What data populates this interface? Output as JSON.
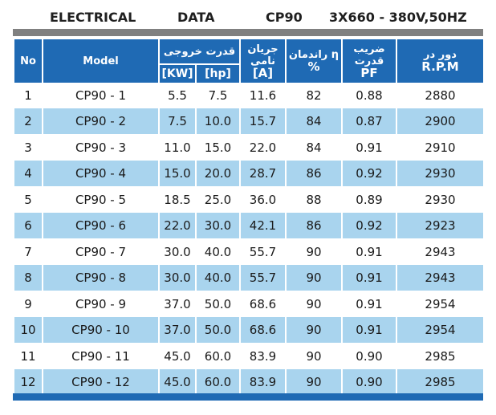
{
  "title": {
    "electrical": "ELECTRICAL",
    "data": "DATA",
    "model": "CP90",
    "voltage": "3X660 - 380V,50HZ"
  },
  "headers": {
    "no": "No",
    "model": "Model",
    "power_fa": "قدرت خروجی",
    "kw": "[KW]",
    "hp": "[hp]",
    "current_fa": "جریان نامی",
    "amp": "[A]",
    "eff_fa": "راندمان η",
    "eff_unit": "%",
    "pf_fa": "ضریب قدرت",
    "pf": "PF",
    "rpm_fa": "دور در",
    "rpm": "R.P.M"
  },
  "rows": [
    {
      "no": "1",
      "model": "CP90 - 1",
      "kw": "5.5",
      "hp": "7.5",
      "amp": "11.6",
      "eff": "82",
      "pf": "0.88",
      "rpm": "2880"
    },
    {
      "no": "2",
      "model": "CP90 - 2",
      "kw": "7.5",
      "hp": "10.0",
      "amp": "15.7",
      "eff": "84",
      "pf": "0.87",
      "rpm": "2900"
    },
    {
      "no": "3",
      "model": "CP90 - 3",
      "kw": "11.0",
      "hp": "15.0",
      "amp": "22.0",
      "eff": "84",
      "pf": "0.91",
      "rpm": "2910"
    },
    {
      "no": "4",
      "model": "CP90 - 4",
      "kw": "15.0",
      "hp": "20.0",
      "amp": "28.7",
      "eff": "86",
      "pf": "0.92",
      "rpm": "2930"
    },
    {
      "no": "5",
      "model": "CP90 - 5",
      "kw": "18.5",
      "hp": "25.0",
      "amp": "36.0",
      "eff": "88",
      "pf": "0.89",
      "rpm": "2930"
    },
    {
      "no": "6",
      "model": "CP90 - 6",
      "kw": "22.0",
      "hp": "30.0",
      "amp": "42.1",
      "eff": "86",
      "pf": "0.92",
      "rpm": "2923"
    },
    {
      "no": "7",
      "model": "CP90 - 7",
      "kw": "30.0",
      "hp": "40.0",
      "amp": "55.7",
      "eff": "90",
      "pf": "0.91",
      "rpm": "2943"
    },
    {
      "no": "8",
      "model": "CP90 - 8",
      "kw": "30.0",
      "hp": "40.0",
      "amp": "55.7",
      "eff": "90",
      "pf": "0.91",
      "rpm": "2943"
    },
    {
      "no": "9",
      "model": "CP90 - 9",
      "kw": "37.0",
      "hp": "50.0",
      "amp": "68.6",
      "eff": "90",
      "pf": "0.91",
      "rpm": "2954"
    },
    {
      "no": "10",
      "model": "CP90 - 10",
      "kw": "37.0",
      "hp": "50.0",
      "amp": "68.6",
      "eff": "90",
      "pf": "0.91",
      "rpm": "2954"
    },
    {
      "no": "11",
      "model": "CP90 - 11",
      "kw": "45.0",
      "hp": "60.0",
      "amp": "83.9",
      "eff": "90",
      "pf": "0.90",
      "rpm": "2985"
    },
    {
      "no": "12",
      "model": "CP90 - 12",
      "kw": "45.0",
      "hp": "60.0",
      "amp": "83.9",
      "eff": "90",
      "pf": "0.90",
      "rpm": "2985"
    }
  ],
  "colors": {
    "header_blue": "#1f6ab4",
    "row_stripe": "#a9d4ee",
    "top_rule": "#808080"
  }
}
